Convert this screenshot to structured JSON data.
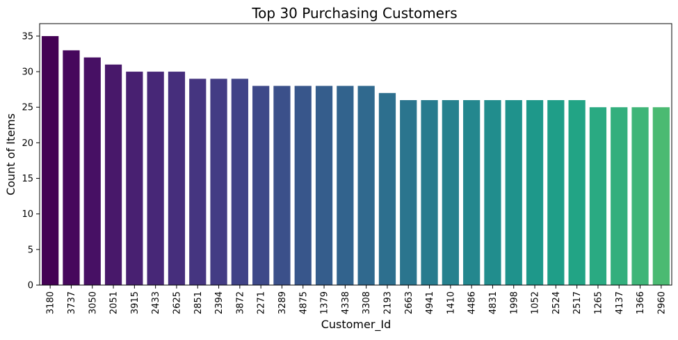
{
  "chart_data": {
    "type": "bar",
    "title": "Top 30 Purchasing Customers",
    "xlabel": "Customer_Id",
    "ylabel": "Count of Items",
    "categories": [
      "3180",
      "3737",
      "3050",
      "2051",
      "3915",
      "2433",
      "2625",
      "2851",
      "2394",
      "3872",
      "2271",
      "3289",
      "4875",
      "1379",
      "4338",
      "3308",
      "2193",
      "2663",
      "4941",
      "1410",
      "4486",
      "4831",
      "1998",
      "1052",
      "2524",
      "2517",
      "1265",
      "4137",
      "1366",
      "2960"
    ],
    "values": [
      35,
      33,
      32,
      31,
      30,
      30,
      30,
      29,
      29,
      29,
      28,
      28,
      28,
      28,
      28,
      28,
      27,
      26,
      26,
      26,
      26,
      26,
      26,
      26,
      26,
      26,
      25,
      25,
      25,
      25
    ],
    "ylim": [
      0,
      36.75
    ],
    "yticks": [
      0,
      5,
      10,
      15,
      20,
      25,
      30,
      35
    ],
    "grid": false,
    "legend": "none",
    "colors": [
      "#440154",
      "#46085c",
      "#471064",
      "#48186a",
      "#482071",
      "#472777",
      "#462e7c",
      "#453580",
      "#433c84",
      "#404387",
      "#3e4989",
      "#3b508a",
      "#38568b",
      "#355d8c",
      "#32638d",
      "#30698e",
      "#2d6f8e",
      "#2b758e",
      "#287b8e",
      "#26818e",
      "#24878e",
      "#218d8d",
      "#1f928c",
      "#1e988a",
      "#1f9e88",
      "#22a485",
      "#2aaa82",
      "#33af7d",
      "#3fb578",
      "#4bba72"
    ],
    "palette_note": "viridis"
  }
}
